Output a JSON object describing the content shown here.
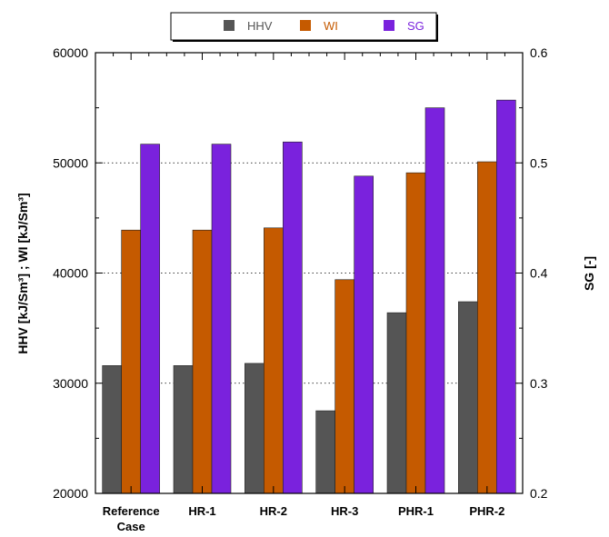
{
  "chart_data": {
    "type": "bar",
    "categories": [
      "Reference Case",
      "HR-1",
      "HR-2",
      "HR-3",
      "PHR-1",
      "PHR-2"
    ],
    "category_lines": [
      [
        "Reference",
        "Case"
      ],
      [
        "HR-1"
      ],
      [
        "HR-2"
      ],
      [
        "HR-3"
      ],
      [
        "PHR-1"
      ],
      [
        "PHR-2"
      ]
    ],
    "series": [
      {
        "name": "HHV",
        "axis": "left",
        "color": "#555555",
        "values": [
          31600,
          31600,
          31800,
          27500,
          36400,
          37400
        ]
      },
      {
        "name": "WI",
        "axis": "left",
        "color": "#c55a00",
        "values": [
          43900,
          43900,
          44100,
          39400,
          49100,
          50100
        ]
      },
      {
        "name": "SG",
        "axis": "right",
        "color": "#7a22dd",
        "values": [
          0.517,
          0.517,
          0.519,
          0.488,
          0.55,
          0.557
        ]
      }
    ],
    "y_left": {
      "ylim": [
        20000,
        60000
      ],
      "ticks": [
        "20000",
        "30000",
        "40000",
        "50000",
        "60000"
      ],
      "label": "HHV [kJ/Sm³] ; WI [kJ/Sm³]"
    },
    "y_right": {
      "ylim": [
        0.2,
        0.6
      ],
      "ticks": [
        "0.2",
        "0.3",
        "0.4",
        "0.5",
        "0.6"
      ],
      "label": "SG [-]"
    },
    "grid": "horizontal-dotted",
    "legend_position": "top"
  }
}
